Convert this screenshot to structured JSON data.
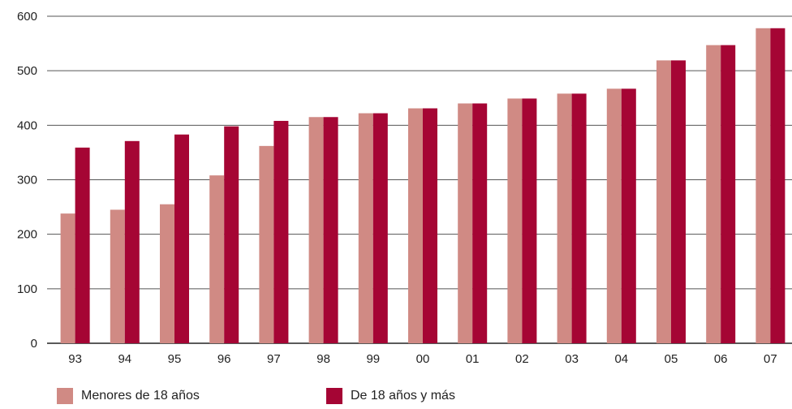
{
  "chart_data": {
    "type": "bar",
    "categories": [
      "93",
      "94",
      "95",
      "96",
      "97",
      "98",
      "99",
      "00",
      "01",
      "02",
      "03",
      "04",
      "05",
      "06",
      "07"
    ],
    "series": [
      {
        "name": "Menores de 18 años",
        "color": "#d08a84",
        "values": [
          238,
          245,
          255,
          308,
          362,
          415,
          422,
          431,
          440,
          449,
          458,
          467,
          519,
          547,
          578
        ]
      },
      {
        "name": "De 18 años y más",
        "color": "#a50534",
        "values": [
          359,
          371,
          383,
          398,
          408,
          415,
          422,
          431,
          440,
          449,
          458,
          467,
          519,
          547,
          578
        ]
      }
    ],
    "yticks": [
      0,
      100,
      200,
      300,
      400,
      500,
      600
    ],
    "ylim": [
      0,
      600
    ],
    "grid": true,
    "legend": "bottom-left"
  }
}
